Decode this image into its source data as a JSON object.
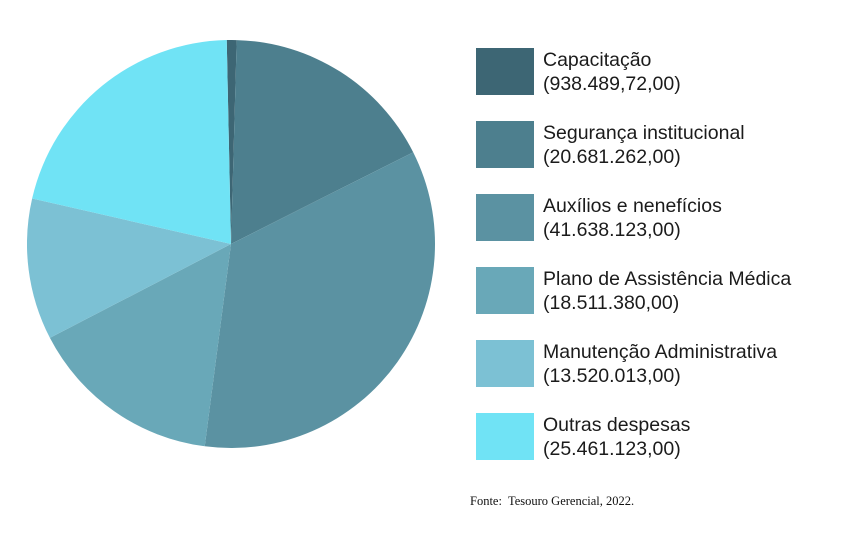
{
  "canvas": {
    "background": "#FFFFFF"
  },
  "chart_data": {
    "type": "pie",
    "title": "",
    "legend_position": "right",
    "direction": "clockwise",
    "start_angle_deg": -1.2,
    "slices": [
      {
        "id": "capacitacao",
        "label": "Capacitação",
        "value": 938489.72,
        "value_display": "(938.489,72,00)",
        "color": "#3D6674"
      },
      {
        "id": "seguranca-institucional",
        "label": "Segurança institucional",
        "value": 20681262.0,
        "value_display": "(20.681.262,00)",
        "color": "#4D7F8E"
      },
      {
        "id": "auxilios-e-neneficios",
        "label": "Auxílios e nenefícios",
        "value": 41638123.0,
        "value_display": "(41.638.123,00)",
        "color": "#5B92A2"
      },
      {
        "id": "plano-de-assistencia-medica",
        "label": "Plano de Assistência Médica",
        "value": 18511380.0,
        "value_display": "(18.511.380,00)",
        "color": "#69A8B8"
      },
      {
        "id": "manutencao-administrativa",
        "label": "Manutenção Administrativa",
        "value": 13520013.0,
        "value_display": "(13.520.013,00)",
        "color": "#7CC1D4"
      },
      {
        "id": "outras-despesas",
        "label": "Outras despesas",
        "value": 25461123.0,
        "value_display": "(25.461.123,00)",
        "color": "#70E3F5"
      }
    ]
  },
  "footer": {
    "source_note": "Fonte:  Tesouro Gerencial, 2022."
  }
}
